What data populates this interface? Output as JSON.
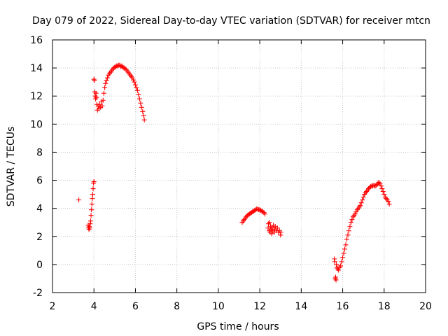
{
  "chart_data": {
    "type": "scatter",
    "title": "Day 079 of 2022, Sidereal Day-to-day VTEC variation (SDTVAR) for receiver mtcn",
    "xlabel": "GPS time / hours",
    "ylabel": "SDTVAR / TECUs",
    "xlim": [
      2,
      20
    ],
    "ylim": [
      -2,
      16
    ],
    "xticks": [
      2,
      4,
      6,
      8,
      10,
      12,
      14,
      16,
      18,
      20
    ],
    "yticks": [
      -2,
      0,
      2,
      4,
      6,
      8,
      10,
      12,
      14,
      16
    ],
    "xtick_labels": [
      "2",
      "4",
      "6",
      "8",
      "10",
      "12",
      "14",
      "16",
      "18",
      "20"
    ],
    "ytick_labels": [
      "-2",
      "0",
      "2",
      "4",
      "6",
      "8",
      "10",
      "12",
      "14",
      "16"
    ],
    "grid": true,
    "marker": "plus",
    "color": "#ff0000",
    "series": [
      {
        "name": "mtcn",
        "points": [
          [
            3.27,
            4.6
          ],
          [
            3.72,
            2.8
          ],
          [
            3.74,
            2.6
          ],
          [
            3.76,
            2.5
          ],
          [
            3.78,
            2.7
          ],
          [
            3.8,
            2.6
          ],
          [
            3.82,
            2.9
          ],
          [
            3.84,
            3.1
          ],
          [
            3.86,
            3.5
          ],
          [
            3.88,
            3.9
          ],
          [
            3.9,
            4.3
          ],
          [
            3.92,
            4.7
          ],
          [
            3.94,
            5.0
          ],
          [
            3.96,
            5.4
          ],
          [
            3.98,
            5.8
          ],
          [
            4.0,
            5.9
          ],
          [
            4.0,
            13.2
          ],
          [
            4.02,
            13.1
          ],
          [
            4.04,
            12.3
          ],
          [
            4.06,
            12.0
          ],
          [
            4.08,
            11.8
          ],
          [
            4.1,
            12.2
          ],
          [
            4.12,
            11.9
          ],
          [
            4.14,
            11.4
          ],
          [
            4.17,
            11.0
          ],
          [
            4.2,
            11.3
          ],
          [
            4.24,
            11.1
          ],
          [
            4.28,
            11.4
          ],
          [
            4.32,
            11.2
          ],
          [
            4.36,
            11.6
          ],
          [
            4.4,
            11.3
          ],
          [
            4.44,
            11.7
          ],
          [
            4.48,
            12.2
          ],
          [
            4.52,
            12.6
          ],
          [
            4.56,
            12.9
          ],
          [
            4.6,
            13.1
          ],
          [
            4.65,
            13.3
          ],
          [
            4.7,
            13.5
          ],
          [
            4.75,
            13.6
          ],
          [
            4.8,
            13.7
          ],
          [
            4.85,
            13.8
          ],
          [
            4.9,
            13.9
          ],
          [
            4.95,
            14.0
          ],
          [
            5.0,
            14.05
          ],
          [
            5.05,
            14.1
          ],
          [
            5.1,
            14.15
          ],
          [
            5.15,
            14.15
          ],
          [
            5.2,
            14.2
          ],
          [
            5.25,
            14.2
          ],
          [
            5.3,
            14.1
          ],
          [
            5.35,
            14.15
          ],
          [
            5.4,
            14.05
          ],
          [
            5.45,
            14.0
          ],
          [
            5.5,
            13.95
          ],
          [
            5.55,
            13.9
          ],
          [
            5.6,
            13.8
          ],
          [
            5.65,
            13.7
          ],
          [
            5.7,
            13.6
          ],
          [
            5.75,
            13.5
          ],
          [
            5.8,
            13.4
          ],
          [
            5.85,
            13.3
          ],
          [
            5.9,
            13.15
          ],
          [
            5.95,
            13.0
          ],
          [
            6.0,
            12.8
          ],
          [
            6.05,
            12.6
          ],
          [
            6.1,
            12.4
          ],
          [
            6.15,
            12.1
          ],
          [
            6.2,
            11.8
          ],
          [
            6.25,
            11.5
          ],
          [
            6.3,
            11.2
          ],
          [
            6.35,
            10.9
          ],
          [
            6.4,
            10.6
          ],
          [
            6.43,
            10.3
          ],
          [
            11.15,
            3.0
          ],
          [
            11.2,
            3.1
          ],
          [
            11.25,
            3.2
          ],
          [
            11.3,
            3.3
          ],
          [
            11.35,
            3.4
          ],
          [
            11.4,
            3.5
          ],
          [
            11.45,
            3.55
          ],
          [
            11.5,
            3.6
          ],
          [
            11.55,
            3.65
          ],
          [
            11.6,
            3.7
          ],
          [
            11.65,
            3.75
          ],
          [
            11.7,
            3.8
          ],
          [
            11.75,
            3.85
          ],
          [
            11.8,
            3.9
          ],
          [
            11.85,
            3.95
          ],
          [
            11.9,
            3.95
          ],
          [
            11.95,
            3.9
          ],
          [
            12.0,
            3.9
          ],
          [
            12.05,
            3.85
          ],
          [
            12.1,
            3.8
          ],
          [
            12.15,
            3.75
          ],
          [
            12.2,
            3.7
          ],
          [
            12.25,
            3.6
          ],
          [
            12.4,
            2.6
          ],
          [
            12.42,
            2.9
          ],
          [
            12.45,
            2.4
          ],
          [
            12.47,
            3.0
          ],
          [
            12.5,
            2.3
          ],
          [
            12.52,
            2.7
          ],
          [
            12.55,
            2.5
          ],
          [
            12.58,
            2.2
          ],
          [
            12.6,
            2.6
          ],
          [
            12.63,
            2.4
          ],
          [
            12.66,
            2.8
          ],
          [
            12.7,
            2.3
          ],
          [
            12.72,
            2.5
          ],
          [
            12.75,
            2.7
          ],
          [
            12.8,
            2.4
          ],
          [
            12.85,
            2.6
          ],
          [
            12.9,
            2.3
          ],
          [
            12.95,
            2.4
          ],
          [
            13.0,
            2.1
          ],
          [
            13.02,
            2.3
          ],
          [
            15.6,
            0.4
          ],
          [
            15.62,
            0.2
          ],
          [
            15.64,
            -1.0
          ],
          [
            15.66,
            -0.9
          ],
          [
            15.68,
            -1.1
          ],
          [
            15.7,
            0.0
          ],
          [
            15.72,
            -0.2
          ],
          [
            15.75,
            -0.3
          ],
          [
            15.8,
            -0.4
          ],
          [
            15.85,
            -0.2
          ],
          [
            15.9,
            -0.1
          ],
          [
            15.95,
            0.2
          ],
          [
            16.0,
            0.5
          ],
          [
            16.05,
            0.8
          ],
          [
            16.1,
            1.1
          ],
          [
            16.15,
            1.4
          ],
          [
            16.2,
            1.8
          ],
          [
            16.25,
            2.1
          ],
          [
            16.3,
            2.4
          ],
          [
            16.35,
            2.7
          ],
          [
            16.4,
            3.0
          ],
          [
            16.45,
            3.2
          ],
          [
            16.5,
            3.4
          ],
          [
            16.55,
            3.5
          ],
          [
            16.6,
            3.6
          ],
          [
            16.65,
            3.75
          ],
          [
            16.7,
            3.9
          ],
          [
            16.75,
            4.0
          ],
          [
            16.8,
            4.1
          ],
          [
            16.85,
            4.2
          ],
          [
            16.9,
            4.4
          ],
          [
            16.95,
            4.6
          ],
          [
            17.0,
            4.8
          ],
          [
            17.05,
            5.0
          ],
          [
            17.1,
            5.1
          ],
          [
            17.15,
            5.2
          ],
          [
            17.2,
            5.3
          ],
          [
            17.25,
            5.4
          ],
          [
            17.3,
            5.5
          ],
          [
            17.35,
            5.55
          ],
          [
            17.4,
            5.6
          ],
          [
            17.45,
            5.6
          ],
          [
            17.5,
            5.65
          ],
          [
            17.55,
            5.6
          ],
          [
            17.6,
            5.6
          ],
          [
            17.65,
            5.7
          ],
          [
            17.7,
            5.8
          ],
          [
            17.75,
            5.85
          ],
          [
            17.8,
            5.75
          ],
          [
            17.85,
            5.6
          ],
          [
            17.9,
            5.4
          ],
          [
            17.95,
            5.2
          ],
          [
            18.0,
            5.0
          ],
          [
            18.05,
            4.8
          ],
          [
            18.1,
            4.7
          ],
          [
            18.15,
            4.6
          ],
          [
            18.2,
            4.5
          ],
          [
            18.25,
            4.3
          ]
        ]
      }
    ]
  }
}
